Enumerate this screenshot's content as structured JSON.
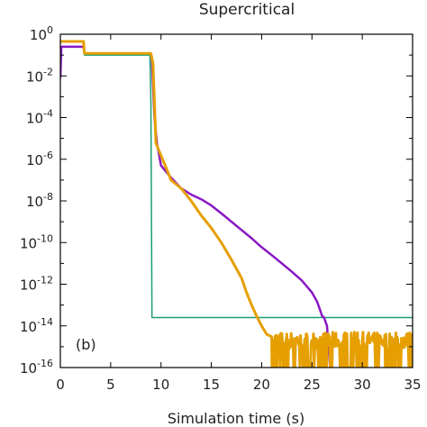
{
  "chart_data": {
    "type": "line",
    "title": "Supercritical",
    "xlabel": "Simulation time (s)",
    "ylabel": "",
    "xlim": [
      0,
      35
    ],
    "ylim_log10": [
      -16,
      0
    ],
    "yscale": "log",
    "grid": false,
    "panel_label": "(b)",
    "x_ticks": [
      "0",
      "5",
      "10",
      "15",
      "20",
      "25",
      "30",
      "35"
    ],
    "x_tick_values": [
      0,
      5,
      10,
      15,
      20,
      25,
      30,
      35
    ],
    "y_ticks": [
      {
        "base": "10",
        "exp": "0",
        "value": 1.0
      },
      {
        "base": "10",
        "exp": "-2",
        "value": 0.01
      },
      {
        "base": "10",
        "exp": "-4",
        "value": 0.0001
      },
      {
        "base": "10",
        "exp": "-6",
        "value": 1e-06
      },
      {
        "base": "10",
        "exp": "-8",
        "value": 1e-08
      },
      {
        "base": "10",
        "exp": "-10",
        "value": 1e-10
      },
      {
        "base": "10",
        "exp": "-12",
        "value": 1e-12
      },
      {
        "base": "10",
        "exp": "-14",
        "value": 1e-14
      },
      {
        "base": "10",
        "exp": "-16",
        "value": 1e-16
      }
    ],
    "series": [
      {
        "color": "#1a9e77",
        "stroke_width": 1.5,
        "points": [
          [
            0,
            0.25
          ],
          [
            2.3,
            0.25
          ],
          [
            2.4,
            0.1
          ],
          [
            8.9,
            0.1
          ],
          [
            9.0,
            0.0006
          ],
          [
            9.1,
            2.5e-14
          ],
          [
            35,
            2.5e-14
          ]
        ]
      },
      {
        "color": "#8a18c4",
        "stroke_width": 2.5,
        "points": [
          [
            0,
            0.008
          ],
          [
            0.1,
            0.25
          ],
          [
            2.3,
            0.25
          ],
          [
            2.4,
            0.12
          ],
          [
            9.0,
            0.12
          ],
          [
            9.1,
            0.05
          ],
          [
            9.35,
            0.0001
          ],
          [
            9.6,
            6e-06
          ],
          [
            10,
            5e-07
          ],
          [
            11,
            1.3e-07
          ],
          [
            12,
            4e-08
          ],
          [
            13,
            2e-08
          ],
          [
            14,
            1.2e-08
          ],
          [
            15,
            6e-09
          ],
          [
            16,
            2.5e-09
          ],
          [
            17,
            1e-09
          ],
          [
            18,
            4e-10
          ],
          [
            19,
            1.6e-10
          ],
          [
            20,
            6e-11
          ],
          [
            21,
            2.5e-11
          ],
          [
            22,
            1e-11
          ],
          [
            23,
            4e-12
          ],
          [
            24,
            1.5e-12
          ],
          [
            25,
            4e-13
          ],
          [
            25.5,
            1.5e-13
          ],
          [
            25.8,
            6e-14
          ],
          [
            26.0,
            3e-14
          ],
          [
            26.2,
            2.5e-14
          ],
          [
            26.5,
            1e-14
          ],
          [
            26.8,
            1e-16
          ]
        ]
      },
      {
        "color": "#e69f00",
        "stroke_width": 3,
        "points": [
          [
            0,
            0.45
          ],
          [
            2.3,
            0.45
          ],
          [
            2.4,
            0.12
          ],
          [
            9.0,
            0.12
          ],
          [
            9.2,
            0.04
          ],
          [
            9.5,
            6e-06
          ],
          [
            10,
            1.5e-06
          ],
          [
            10.5,
            4e-07
          ],
          [
            11,
            1e-07
          ],
          [
            12,
            4e-08
          ],
          [
            13,
            1e-08
          ],
          [
            14,
            2e-09
          ],
          [
            15,
            5e-10
          ],
          [
            16,
            1e-10
          ],
          [
            17,
            1.5e-11
          ],
          [
            18,
            2e-12
          ],
          [
            18.5,
            4e-13
          ],
          [
            19,
            1e-13
          ],
          [
            19.5,
            3e-14
          ],
          [
            20,
            1e-14
          ],
          [
            20.5,
            4e-15
          ],
          [
            21,
            3e-15
          ]
        ],
        "noise_band": {
          "x_start": 19,
          "x_end": 35,
          "low_log10": -16,
          "high_log10": -14.3
        }
      }
    ]
  }
}
